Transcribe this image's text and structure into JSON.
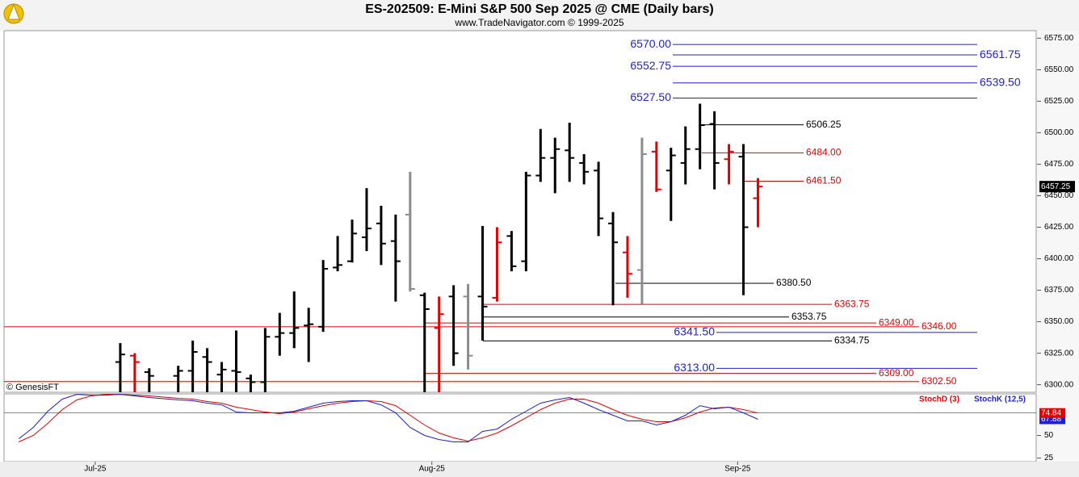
{
  "chart_data": {
    "type": "ohlc",
    "title": "ES-202509:  E-Mini S&P 500 Sep 2025 @ CME  (Daily bars)",
    "subtitle": "www.TradeNavigator.com © 1999-2025",
    "annotation": "© GenesisFT",
    "x": [
      0,
      1,
      2,
      4,
      5,
      6,
      7,
      8,
      9,
      10,
      11,
      12,
      13,
      14,
      15,
      16,
      17,
      18,
      19,
      20,
      21,
      22,
      23,
      24,
      25,
      26,
      27,
      28,
      29,
      30,
      31,
      32,
      33,
      34,
      35,
      36,
      37,
      38,
      39,
      40,
      41,
      42,
      43,
      44
    ],
    "open": [
      6318,
      6323,
      6310,
      6307,
      6311,
      6322,
      6308,
      6311,
      6305,
      6302,
      6338,
      6341,
      6347,
      6346,
      6393,
      6398,
      6417,
      6428,
      6414,
      6435,
      6371,
      6345,
      6370,
      6370,
      6370,
      6369,
      6418,
      6398,
      6466,
      6480,
      6486,
      6476,
      6470,
      6428,
      6405,
      6391,
      6485,
      6470,
      6476,
      6487,
      6507,
      6479,
      6481,
      6448
    ],
    "high": [
      6333,
      6325,
      6313,
      6315,
      6335,
      6329,
      6318,
      6343,
      6308,
      6345,
      6357,
      6374,
      6361,
      6399,
      6418,
      6431,
      6456,
      6442,
      6435,
      6469,
      6373,
      6370,
      6379,
      6380,
      6426,
      6425,
      6422,
      6469,
      6503,
      6496,
      6508,
      6483,
      6477,
      6437,
      6418,
      6496,
      6493,
      6488,
      6505,
      6523,
      6517,
      6491,
      6491,
      6464
    ],
    "low": [
      6285,
      6290,
      6288,
      6290,
      6290,
      6292,
      6290,
      6290,
      6293,
      6288,
      6323,
      6329,
      6318,
      6342,
      6390,
      6397,
      6406,
      6395,
      6366,
      6374,
      6285,
      6285,
      6315,
      6312,
      6335,
      6366,
      6390,
      6390,
      6461,
      6452,
      6461,
      6459,
      6418,
      6363,
      6369,
      6364,
      6453,
      6430,
      6459,
      6471,
      6455,
      6459,
      6371,
      6425
    ],
    "close": [
      6324,
      6318,
      6307,
      6311,
      6326,
      6318,
      6312,
      6310,
      6302,
      6338,
      6341,
      6345,
      6348,
      6392,
      6395,
      6420,
      6424,
      6412,
      6398,
      6376,
      6360,
      6356,
      6325,
      6323,
      6362,
      6413,
      6394,
      6466,
      6480,
      6487,
      6480,
      6469,
      6432,
      6413,
      6388,
      6483,
      6455,
      6482,
      6487,
      6506,
      6476,
      6485,
      6425,
      6457.25
    ],
    "colors": [
      "#000000",
      "#e00000",
      "#000000",
      "#000000",
      "#000000",
      "#000000",
      "#000000",
      "#000000",
      "#000000",
      "#000000",
      "#000000",
      "#000000",
      "#000000",
      "#000000",
      "#000000",
      "#000000",
      "#000000",
      "#000000",
      "#000000",
      "#8c8c8c",
      "#000000",
      "#e00000",
      "#000000",
      "#8c8c8c",
      "#000000",
      "#e00000",
      "#000000",
      "#000000",
      "#000000",
      "#000000",
      "#000000",
      "#000000",
      "#000000",
      "#000000",
      "#e00000",
      "#8c8c8c",
      "#e00000",
      "#000000",
      "#000000",
      "#000000",
      "#000000",
      "#e00000",
      "#000000",
      "#e00000"
    ],
    "xlim": [
      -8.02,
      63.2
    ],
    "xticks": [
      {
        "value": -1.73,
        "label": "Jul-25"
      },
      {
        "value": 21.5,
        "label": "Aug-25"
      },
      {
        "value": 42.6,
        "label": "Sep-25"
      }
    ],
    "ylim": [
      6294,
      6581
    ],
    "yticks": [
      {
        "value": 6300,
        "label": "6300.00"
      },
      {
        "value": 6325,
        "label": "6325.00"
      },
      {
        "value": 6350,
        "label": "6350.00"
      },
      {
        "value": 6375,
        "label": "6375.00"
      },
      {
        "value": 6400,
        "label": "6400.00"
      },
      {
        "value": 6425,
        "label": "6425.00"
      },
      {
        "value": 6450,
        "label": "6450.00"
      },
      {
        "value": 6475,
        "label": "6475.00"
      },
      {
        "value": 6500,
        "label": "6500.00"
      },
      {
        "value": 6525,
        "label": "6525.00"
      },
      {
        "value": 6550,
        "label": "6550.00"
      },
      {
        "value": 6575,
        "label": "6575.00"
      }
    ],
    "levels": [
      {
        "value": 6570,
        "label": "6570.00",
        "color": "#1f1fcc"
      },
      {
        "value": 6561.75,
        "label": "6561.75",
        "color": "#1f1fcc"
      },
      {
        "value": 6552.75,
        "label": "6552.75",
        "color": "#1f1fcc"
      },
      {
        "value": 6539.5,
        "label": "6539.50",
        "color": "#1f1fcc"
      },
      {
        "value": 6527.5,
        "label": "6527.50",
        "color": "#1f1fcc"
      },
      {
        "value": 6506.25,
        "label": "6506.25",
        "color": "#000000"
      },
      {
        "value": 6484,
        "label": "6484.00",
        "color": "#e00000"
      },
      {
        "value": 6461.5,
        "label": "6461.50",
        "color": "#e00000"
      },
      {
        "value": 6380.5,
        "label": "6380.50",
        "color": "#000000"
      },
      {
        "value": 6363.75,
        "label": "6363.75",
        "color": "#e00000"
      },
      {
        "value": 6353.75,
        "label": "6353.75",
        "color": "#000000"
      },
      {
        "value": 6349,
        "label": "6349.00",
        "color": "#e00000"
      },
      {
        "value": 6346,
        "label": "6346.00",
        "color": "#e00000"
      },
      {
        "value": 6341.5,
        "label": "6341.50",
        "color": "#1f1fcc"
      },
      {
        "value": 6334.75,
        "label": "6334.75",
        "color": "#000000"
      },
      {
        "value": 6313,
        "label": "6313.00",
        "color": "#1f1fcc"
      },
      {
        "value": 6309,
        "label": "6309.00",
        "color": "#e00000"
      },
      {
        "value": 6302.5,
        "label": "6302.50",
        "color": "#e00000"
      }
    ],
    "oscillator": {
      "type": "line",
      "x": [
        -7,
        -6,
        -5,
        -4,
        -3,
        -2,
        -1,
        0,
        1,
        2,
        4,
        5,
        6,
        7,
        8,
        9,
        10,
        11,
        12,
        13,
        14,
        15,
        16,
        17,
        18,
        19,
        20,
        21,
        22,
        23,
        24,
        25,
        26,
        27,
        28,
        29,
        30,
        31,
        32,
        33,
        34,
        35,
        36,
        37,
        38,
        39,
        40,
        41,
        42,
        43,
        44
      ],
      "ylim": [
        21,
        96
      ],
      "yticks": [
        25,
        50
      ],
      "ref_line": 75,
      "series": [
        {
          "name": "StochD (3)",
          "color": "#e00000",
          "values": [
            42.9,
            50,
            63.4,
            78.6,
            89.3,
            93.8,
            95.5,
            95.5,
            94.6,
            93.8,
            91.1,
            90.2,
            87.5,
            85.7,
            81.3,
            78.6,
            75.9,
            74.1,
            75.9,
            79.5,
            83,
            85.7,
            87.5,
            88.4,
            87.5,
            83,
            72.3,
            61.6,
            52.7,
            47.3,
            43.8,
            47.3,
            52.7,
            60.7,
            69.6,
            78.6,
            85.7,
            90.2,
            90.2,
            85.7,
            78.6,
            72.3,
            67.9,
            65.2,
            65.2,
            69.6,
            75.9,
            80.4,
            81.3,
            78.6,
            74.84
          ]
        },
        {
          "name": "StochK (12,5)",
          "color": "#1f1fcc",
          "values": [
            46.4,
            58.9,
            76.8,
            90.2,
            95.5,
            94.6,
            94.6,
            95.5,
            93.8,
            92,
            89.3,
            88.4,
            85.7,
            83.9,
            75.9,
            75,
            75,
            75,
            76.8,
            81.3,
            85.7,
            87.5,
            88.4,
            88.4,
            83.9,
            75,
            58.9,
            50,
            45.5,
            42.9,
            42.9,
            54.5,
            57.1,
            67.9,
            76.8,
            85.7,
            89.3,
            92,
            85.7,
            78.6,
            72.3,
            66.1,
            66.1,
            61.6,
            65.2,
            72.3,
            83,
            79.5,
            81.3,
            75,
            67.88
          ]
        }
      ]
    }
  }
}
